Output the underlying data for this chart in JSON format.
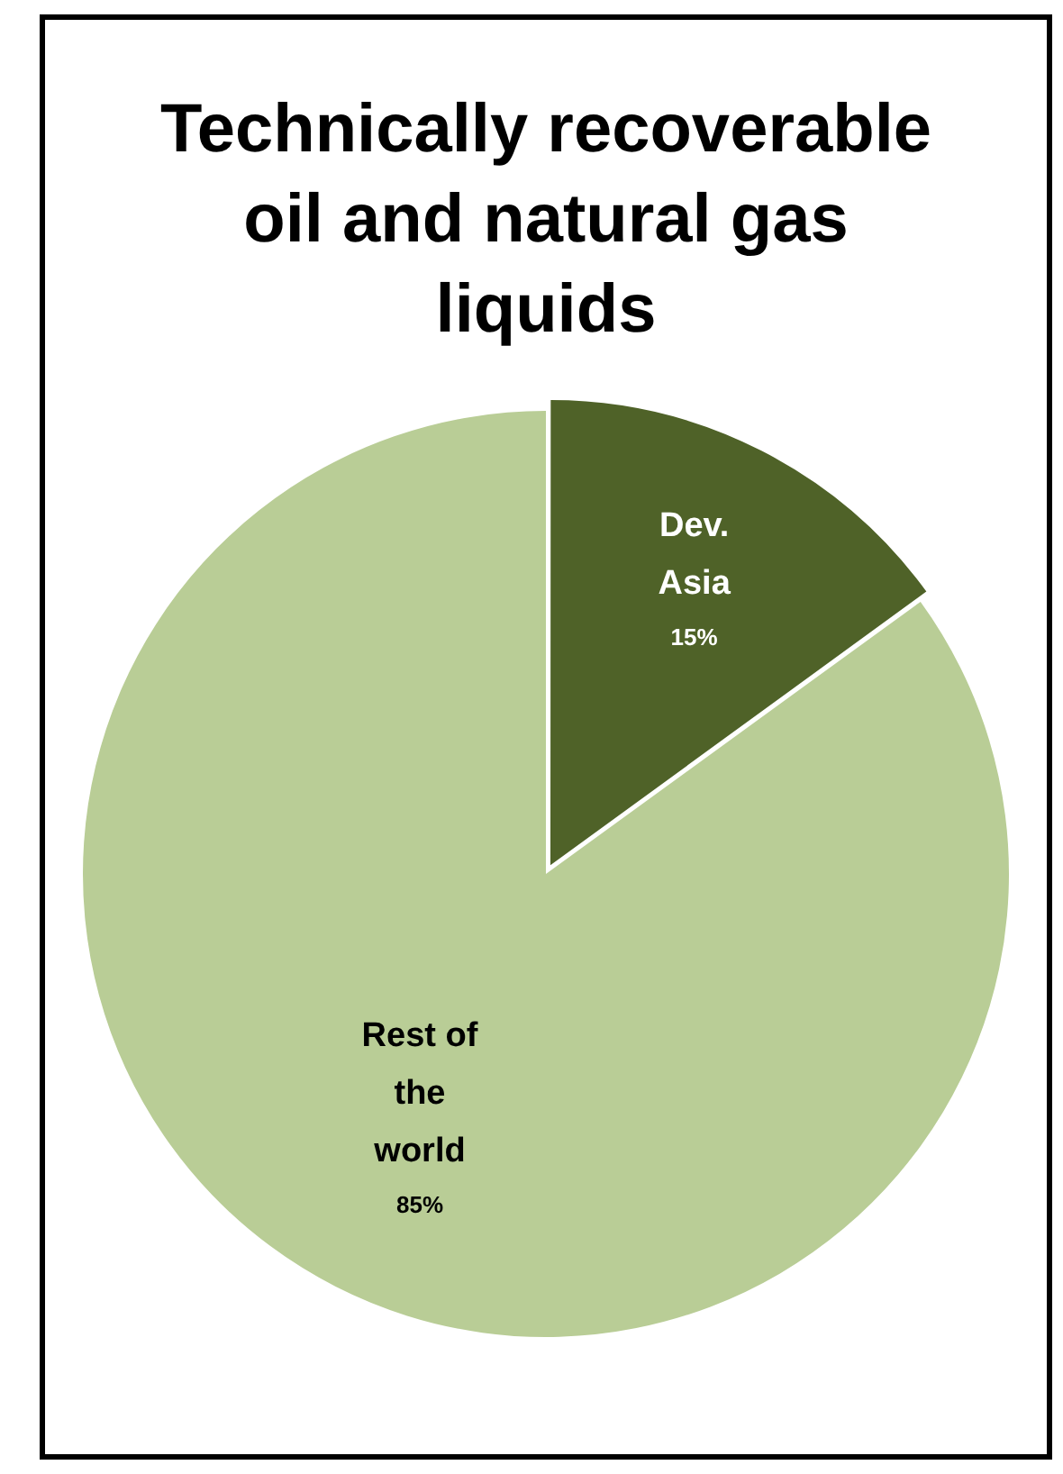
{
  "chart_data": {
    "type": "pie",
    "title": "Technically recoverable oil and natural gas liquids",
    "categories": [
      "Dev. Asia",
      "Rest of the world"
    ],
    "values": [
      15,
      85
    ],
    "colors": [
      "#4f6228",
      "#b9cd96"
    ],
    "value_labels": [
      "15%",
      "85%"
    ],
    "legend": false
  }
}
